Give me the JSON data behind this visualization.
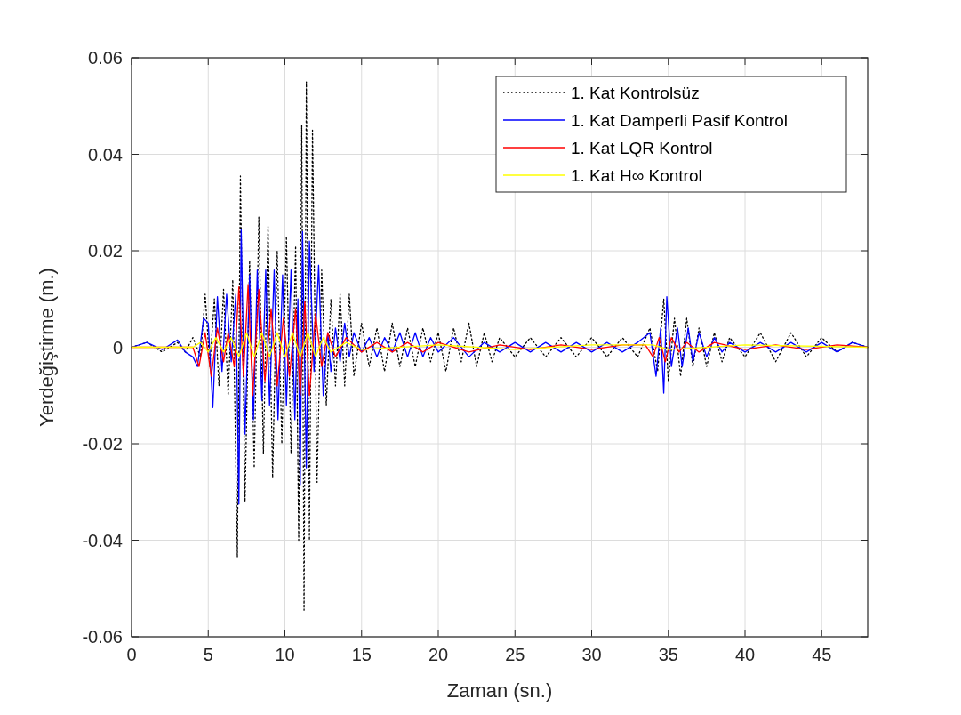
{
  "chart_data": {
    "type": "line",
    "xlabel": "Zaman (sn.)",
    "ylabel": "Yerdeğiştirme (m.)",
    "xlim": [
      0,
      48
    ],
    "xticks": [
      0,
      5,
      10,
      15,
      20,
      25,
      30,
      35,
      40,
      45
    ],
    "ylim": [
      -0.06,
      0.06
    ],
    "yticks": [
      -0.06,
      -0.04,
      -0.02,
      0,
      0.02,
      0.04,
      0.06
    ],
    "grid": true,
    "legend": "top right",
    "series": [
      {
        "name": "1. Kat Kontrolsüz",
        "color": "#000000",
        "line_style": "dotted",
        "x": [
          0,
          1,
          2,
          3,
          3.5,
          4,
          4.5,
          4.8,
          5.1,
          5.4,
          5.7,
          6,
          6.3,
          6.6,
          6.9,
          7.1,
          7.4,
          7.7,
          8,
          8.3,
          8.6,
          8.9,
          9.2,
          9.5,
          9.8,
          10.1,
          10.4,
          10.7,
          10.9,
          11.1,
          11.25,
          11.4,
          11.6,
          11.8,
          12.1,
          12.4,
          12.7,
          13,
          13.3,
          13.6,
          13.9,
          14.2,
          14.5,
          15,
          15.5,
          16,
          16.5,
          17,
          17.5,
          18,
          18.5,
          19,
          19.5,
          20,
          20.5,
          21,
          21.5,
          22,
          22.5,
          23,
          23.5,
          24,
          25,
          26,
          27,
          28,
          29,
          30,
          31,
          32,
          33,
          33.8,
          34.3,
          34.7,
          35,
          35.4,
          35.8,
          36.2,
          36.6,
          37,
          37.5,
          38,
          38.5,
          39,
          40,
          41,
          42,
          43,
          44,
          45,
          46,
          47,
          48
        ],
        "values": [
          0,
          0.001,
          -0.001,
          0.001,
          -0.001,
          0.002,
          -0.002,
          0.011,
          -0.004,
          0.01,
          -0.008,
          0.012,
          -0.01,
          0.014,
          -0.0435,
          0.0355,
          -0.032,
          0.018,
          -0.025,
          0.027,
          -0.022,
          0.025,
          -0.027,
          0.02,
          -0.02,
          0.023,
          -0.022,
          0.021,
          -0.04,
          0.046,
          -0.0545,
          0.055,
          -0.04,
          0.045,
          -0.028,
          0.016,
          -0.012,
          0.01,
          -0.008,
          0.011,
          -0.008,
          0.011,
          -0.006,
          0.005,
          -0.004,
          0.004,
          -0.005,
          0.005,
          -0.004,
          0.004,
          -0.004,
          0.004,
          -0.003,
          0.003,
          -0.005,
          0.004,
          -0.003,
          0.005,
          -0.004,
          0.003,
          -0.003,
          0.002,
          -0.002,
          0.002,
          -0.002,
          0.002,
          -0.002,
          0.002,
          -0.002,
          0.002,
          -0.002,
          0.004,
          -0.005,
          0.01,
          -0.007,
          0.006,
          -0.006,
          0.006,
          -0.004,
          0.004,
          -0.004,
          0.003,
          -0.003,
          0.002,
          -0.002,
          0.003,
          -0.003,
          0.003,
          -0.002,
          0.002,
          -0.001,
          0.001,
          0
        ]
      },
      {
        "name": "1. Kat Damperli Pasif Kontrol",
        "color": "#0000ff",
        "line_style": "solid",
        "x": [
          0,
          1,
          2,
          3,
          3.5,
          4,
          4.3,
          4.7,
          5,
          5.3,
          5.6,
          5.9,
          6.2,
          6.5,
          6.8,
          7,
          7.15,
          7.4,
          7.7,
          7.95,
          8.2,
          8.5,
          8.75,
          9,
          9.3,
          9.55,
          9.85,
          10.1,
          10.4,
          10.65,
          10.85,
          11,
          11.15,
          11.4,
          11.6,
          11.9,
          12.2,
          12.5,
          12.8,
          13,
          13.3,
          13.6,
          13.9,
          14.2,
          14.5,
          15,
          15.5,
          16,
          16.5,
          17,
          17.5,
          18,
          18.5,
          19,
          19.5,
          20,
          21,
          22,
          23,
          24,
          25,
          26,
          27,
          28,
          29,
          30,
          31,
          32,
          33,
          33.8,
          34.2,
          34.5,
          34.7,
          34.9,
          35.2,
          35.6,
          35.9,
          36.3,
          36.6,
          37,
          37.5,
          38,
          38.5,
          39,
          40,
          41,
          42,
          43,
          44,
          45,
          46,
          47,
          48
        ],
        "values": [
          0,
          0.001,
          -0.0005,
          0.0015,
          -0.001,
          -0.002,
          -0.004,
          0.006,
          0.005,
          -0.0125,
          0.0105,
          -0.005,
          0.011,
          -0.003,
          0.011,
          -0.0325,
          0.0245,
          -0.018,
          0.015,
          -0.015,
          0.016,
          -0.011,
          0.016,
          -0.012,
          0.016,
          -0.015,
          0.015,
          -0.012,
          0.016,
          -0.015,
          0.01,
          -0.0285,
          0.024,
          -0.025,
          0.022,
          -0.005,
          0.017,
          -0.01,
          0.003,
          -0.005,
          0.004,
          -0.003,
          0.005,
          -0.002,
          0.003,
          -0.001,
          0.002,
          -0.002,
          0.002,
          -0.001,
          0.003,
          -0.002,
          0.003,
          -0.002,
          0.002,
          -0.001,
          0.002,
          -0.002,
          0.001,
          -0.001,
          0.001,
          -0.001,
          0.001,
          -0.001,
          0.001,
          -0.001,
          0.001,
          -0.001,
          0.001,
          0.003,
          -0.006,
          0.004,
          -0.0095,
          0.0105,
          -0.004,
          0.004,
          -0.004,
          0.004,
          -0.003,
          0.003,
          -0.002,
          0.002,
          -0.001,
          0.001,
          -0.001,
          0.001,
          -0.001,
          0.001,
          -0.001,
          0.001,
          -0.001,
          0.001,
          0
        ]
      },
      {
        "name": "1. Kat LQR Kontrol",
        "color": "#ff0000",
        "line_style": "solid",
        "x": [
          0,
          4,
          4.4,
          4.8,
          5.2,
          5.6,
          6,
          6.3,
          6.7,
          7,
          7.3,
          7.6,
          7.9,
          8.3,
          8.7,
          9.1,
          9.5,
          9.9,
          10.3,
          10.7,
          11,
          11.3,
          11.6,
          12,
          12.4,
          12.8,
          13.3,
          14,
          15,
          16,
          17,
          18,
          19,
          20,
          22,
          24,
          26,
          28,
          30,
          32,
          33.5,
          34,
          34.4,
          34.8,
          35.2,
          35.7,
          36.2,
          37,
          38,
          40,
          42,
          44,
          46,
          48
        ],
        "values": [
          0,
          0,
          -0.004,
          0.003,
          -0.006,
          0.004,
          -0.003,
          0.003,
          -0.004,
          0.0125,
          -0.006,
          0.013,
          -0.01,
          0.012,
          -0.007,
          0.008,
          -0.008,
          0.006,
          -0.006,
          0.008,
          -0.01,
          0.0095,
          -0.01,
          0.007,
          -0.004,
          0.003,
          -0.002,
          0.002,
          -0.001,
          0.001,
          -0.001,
          0.001,
          -0.001,
          0.001,
          -0.001,
          0.0005,
          -0.0005,
          0.0005,
          -0.0005,
          0.0005,
          0.0005,
          -0.002,
          0.002,
          -0.003,
          0.002,
          -0.001,
          0.001,
          -0.001,
          0.001,
          -0.0005,
          0.0005,
          -0.0005,
          0.0005,
          0
        ]
      },
      {
        "name": "1. Kat H∞ Kontrol",
        "color": "#ffff00",
        "line_style": "solid",
        "x": [
          0,
          4,
          4.5,
          5,
          5.5,
          6,
          6.5,
          7,
          7.5,
          8,
          8.5,
          9,
          9.5,
          10,
          10.5,
          11,
          11.5,
          12,
          12.5,
          13,
          14,
          15,
          20,
          25,
          30,
          34,
          35,
          40,
          48
        ],
        "values": [
          0,
          0,
          0.001,
          -0.001,
          0.002,
          -0.001,
          0.002,
          -0.002,
          0.003,
          -0.002,
          0.003,
          -0.002,
          0.003,
          -0.002,
          0.003,
          -0.002,
          0.003,
          -0.002,
          0.002,
          -0.001,
          0.001,
          -0.0005,
          0.0005,
          -0.0005,
          0.0005,
          0.0005,
          -0.0005,
          0.0005,
          0
        ]
      }
    ]
  }
}
